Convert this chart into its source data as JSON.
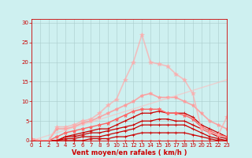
{
  "xlabel": "Vent moyen/en rafales ( km/h )",
  "xlim": [
    0,
    23
  ],
  "ylim": [
    0,
    31
  ],
  "yticks": [
    0,
    5,
    10,
    15,
    20,
    25,
    30
  ],
  "xticks": [
    0,
    1,
    2,
    3,
    4,
    5,
    6,
    7,
    8,
    9,
    10,
    11,
    12,
    13,
    14,
    15,
    16,
    17,
    18,
    19,
    20,
    21,
    22,
    23
  ],
  "bg_color": "#cef0f0",
  "grid_color": "#aacccc",
  "text_color": "#cc0000",
  "series": [
    {
      "x": [
        0,
        1,
        2,
        3,
        4,
        5,
        6,
        7,
        8,
        9,
        10,
        11,
        12,
        13,
        14,
        15,
        16,
        17,
        18,
        19,
        20,
        21,
        22,
        23
      ],
      "y": [
        0,
        0,
        0,
        0,
        0,
        0,
        0,
        0,
        0,
        0,
        0,
        0,
        0,
        0,
        0,
        0,
        0,
        0,
        0,
        0,
        0,
        0,
        0,
        0
      ],
      "color": "#ff8888",
      "alpha": 0.9,
      "linewidth": 0.8,
      "marker": "o",
      "markersize": 2.0
    },
    {
      "x": [
        0,
        1,
        2,
        3,
        4,
        5,
        6,
        7,
        8,
        9,
        10,
        11,
        12,
        13,
        14,
        15,
        16,
        17,
        18,
        19,
        20,
        21,
        22,
        23
      ],
      "y": [
        0,
        0,
        0,
        0,
        0,
        0,
        0,
        0.5,
        0.5,
        0.5,
        1,
        1,
        1.5,
        2,
        2,
        2,
        2,
        2,
        2,
        1.5,
        1,
        0.5,
        0,
        0
      ],
      "color": "#cc0000",
      "alpha": 1.0,
      "linewidth": 0.9,
      "marker": "+",
      "markersize": 3.5
    },
    {
      "x": [
        0,
        1,
        2,
        3,
        4,
        5,
        6,
        7,
        8,
        9,
        10,
        11,
        12,
        13,
        14,
        15,
        16,
        17,
        18,
        19,
        20,
        21,
        22,
        23
      ],
      "y": [
        0,
        0,
        0,
        0,
        0.5,
        0.5,
        1,
        1,
        1,
        1.5,
        2,
        2.5,
        3,
        4,
        4,
        4,
        4,
        4,
        4,
        3,
        2,
        1,
        0.5,
        0
      ],
      "color": "#cc0000",
      "alpha": 1.0,
      "linewidth": 0.9,
      "marker": "+",
      "markersize": 3.5
    },
    {
      "x": [
        0,
        1,
        2,
        3,
        4,
        5,
        6,
        7,
        8,
        9,
        10,
        11,
        12,
        13,
        14,
        15,
        16,
        17,
        18,
        19,
        20,
        21,
        22,
        23
      ],
      "y": [
        0,
        0,
        0,
        0,
        1,
        1,
        1.5,
        2,
        2,
        2.5,
        3,
        3.5,
        4,
        5,
        5,
        5.5,
        5.5,
        5,
        5,
        4,
        3,
        2,
        1,
        0.5
      ],
      "color": "#cc0000",
      "alpha": 1.0,
      "linewidth": 0.9,
      "marker": "+",
      "markersize": 3.5
    },
    {
      "x": [
        0,
        1,
        2,
        3,
        4,
        5,
        6,
        7,
        8,
        9,
        10,
        11,
        12,
        13,
        14,
        15,
        16,
        17,
        18,
        19,
        20,
        21,
        22,
        23
      ],
      "y": [
        0,
        0,
        0,
        0,
        1,
        1.5,
        2,
        2.5,
        3,
        3,
        4,
        5,
        6,
        7,
        7,
        7.5,
        7,
        7,
        7,
        6,
        4,
        3,
        2,
        1
      ],
      "color": "#cc0000",
      "alpha": 1.0,
      "linewidth": 0.9,
      "marker": "+",
      "markersize": 3.5
    },
    {
      "x": [
        0,
        1,
        2,
        3,
        4,
        5,
        6,
        7,
        8,
        9,
        10,
        11,
        12,
        13,
        14,
        15,
        16,
        17,
        18,
        19,
        20,
        21,
        22,
        23
      ],
      "y": [
        0.5,
        0,
        0,
        1,
        2,
        2.5,
        3,
        3.5,
        4,
        4.5,
        5.5,
        6.5,
        7.5,
        8,
        8,
        8,
        7,
        7,
        6.5,
        5.5,
        3.5,
        2.5,
        1.5,
        1
      ],
      "color": "#ff6666",
      "alpha": 1.0,
      "linewidth": 1.0,
      "marker": "*",
      "markersize": 3.5
    },
    {
      "x": [
        0,
        1,
        2,
        3,
        4,
        5,
        6,
        7,
        8,
        9,
        10,
        11,
        12,
        13,
        14,
        15,
        16,
        17,
        18,
        19,
        20,
        21,
        22,
        23
      ],
      "y": [
        0.5,
        0,
        0,
        3,
        3,
        3.5,
        4.5,
        5,
        6,
        7,
        8,
        9,
        10,
        11.5,
        12,
        11,
        11,
        11,
        10,
        9,
        7,
        5,
        4,
        3
      ],
      "color": "#ff9999",
      "alpha": 0.85,
      "linewidth": 1.2,
      "marker": "*",
      "markersize": 3.5
    },
    {
      "x": [
        0,
        1,
        2,
        3,
        4,
        5,
        6,
        7,
        8,
        9,
        10,
        11,
        12,
        13,
        14,
        15,
        16,
        17,
        18,
        19,
        20,
        21,
        22,
        23
      ],
      "y": [
        0.5,
        0,
        0,
        3.5,
        3.5,
        4,
        5,
        5.5,
        7,
        9,
        10.5,
        15.5,
        20,
        27,
        20,
        19.5,
        19,
        17,
        15.5,
        12,
        3,
        2,
        1.5,
        6
      ],
      "color": "#ffaaaa",
      "alpha": 0.7,
      "linewidth": 1.2,
      "marker": "*",
      "markersize": 4.0
    },
    {
      "x": [
        0,
        23
      ],
      "y": [
        0,
        15.5
      ],
      "color": "#ffbbbb",
      "alpha": 0.6,
      "linewidth": 1.0,
      "marker": null,
      "markersize": 0
    }
  ]
}
